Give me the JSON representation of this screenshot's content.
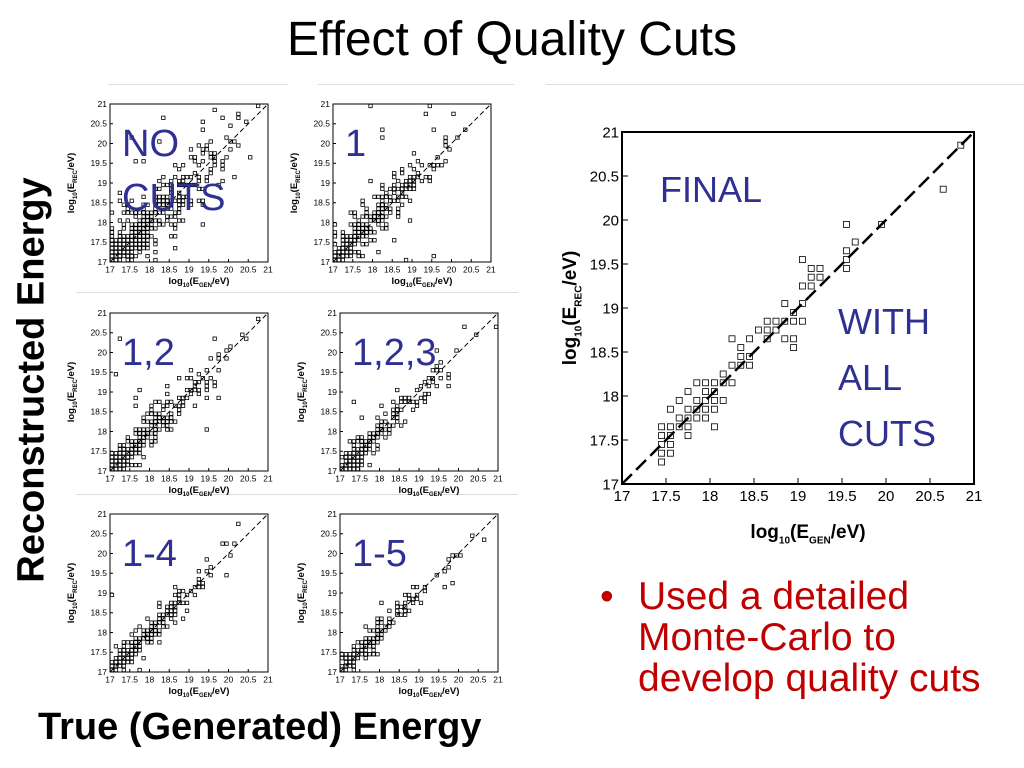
{
  "title": "Effect of Quality Cuts",
  "y_axis_label": "Reconstructed Energy",
  "x_axis_label": "True (Generated) Energy",
  "bullet": {
    "marker": "•",
    "text": "Used a detailed Monte-Carlo to develop quality cuts"
  },
  "colors": {
    "panel_label": "#2e3192",
    "bullet": "#c00000"
  },
  "chart_data": [
    {
      "type": "scatter",
      "panel_label": [
        "NO",
        "CUTS"
      ],
      "xlabel": "log10(EGEN/eV)",
      "ylabel": "log10(EREC/eV)",
      "xlim": [
        17,
        21
      ],
      "ylim": [
        17,
        21
      ],
      "ticks": [
        "17",
        "17.5",
        "18",
        "18.5",
        "19",
        "19.5",
        "20",
        "20.5",
        "21"
      ],
      "spread": 0.45,
      "outliers": 0.12,
      "lowEdge": 17.0,
      "reference_line": "y = x (dashed)"
    },
    {
      "type": "scatter",
      "panel_label": [
        "1"
      ],
      "xlabel": "log10(EGEN/eV)",
      "ylabel": "log10(EREC/eV)",
      "xlim": [
        17,
        21
      ],
      "ylim": [
        17,
        21
      ],
      "ticks": [
        "17",
        "17.5",
        "18",
        "18.5",
        "19",
        "19.5",
        "20",
        "20.5",
        "21"
      ],
      "spread": 0.35,
      "outliers": 0.06,
      "lowEdge": 17.0,
      "reference_line": "y = x (dashed)"
    },
    {
      "type": "scatter",
      "panel_label": [
        "1,2"
      ],
      "xlabel": "log10(EGEN/eV)",
      "ylabel": "log10(EREC/eV)",
      "xlim": [
        17,
        21
      ],
      "ylim": [
        17,
        21
      ],
      "ticks": [
        "17",
        "17.5",
        "18",
        "18.5",
        "19",
        "19.5",
        "20",
        "20.5",
        "21"
      ],
      "spread": 0.3,
      "outliers": 0.04,
      "lowEdge": 17.0,
      "reference_line": "y = x (dashed)"
    },
    {
      "type": "scatter",
      "panel_label": [
        "1,2,3"
      ],
      "xlabel": "log10(EGEN/eV)",
      "ylabel": "log10(EREC/eV)",
      "xlim": [
        17,
        21
      ],
      "ylim": [
        17,
        21
      ],
      "ticks": [
        "17",
        "17.5",
        "18",
        "18.5",
        "19",
        "19.5",
        "20",
        "20.5",
        "21"
      ],
      "spread": 0.27,
      "outliers": 0.03,
      "lowEdge": 17.0,
      "reference_line": "y = x (dashed)"
    },
    {
      "type": "scatter",
      "panel_label": [
        "1-4"
      ],
      "xlabel": "log10(EGEN/eV)",
      "ylabel": "log10(EREC/eV)",
      "xlim": [
        17,
        21
      ],
      "ylim": [
        17,
        21
      ],
      "ticks": [
        "17",
        "17.5",
        "18",
        "18.5",
        "19",
        "19.5",
        "20",
        "20.5",
        "21"
      ],
      "spread": 0.22,
      "outliers": 0.02,
      "lowEdge": 17.0,
      "reference_line": "y = x (dashed)"
    },
    {
      "type": "scatter",
      "panel_label": [
        "1-5"
      ],
      "xlabel": "log10(EGEN/eV)",
      "ylabel": "log10(EREC/eV)",
      "xlim": [
        17,
        21
      ],
      "ylim": [
        17,
        21
      ],
      "ticks": [
        "17",
        "17.5",
        "18",
        "18.5",
        "19",
        "19.5",
        "20",
        "20.5",
        "21"
      ],
      "spread": 0.2,
      "outliers": 0.01,
      "lowEdge": 17.0,
      "reference_line": "y = x (dashed)"
    },
    {
      "type": "scatter",
      "panel_label": [
        "FINAL"
      ],
      "panel_label_2": [
        "WITH",
        "ALL",
        "CUTS"
      ],
      "xlabel": "log10(EGEN/eV)",
      "ylabel": "log10(EREC/eV)",
      "xlim": [
        17,
        21
      ],
      "ylim": [
        17,
        21
      ],
      "ticks": [
        "17",
        "17.5",
        "18",
        "18.5",
        "19",
        "19.5",
        "20",
        "20.5",
        "21"
      ],
      "spread": 0.2,
      "outliers": 0.0,
      "lowEdge": 17.4,
      "reference_line": "y = x (dashed)"
    }
  ]
}
